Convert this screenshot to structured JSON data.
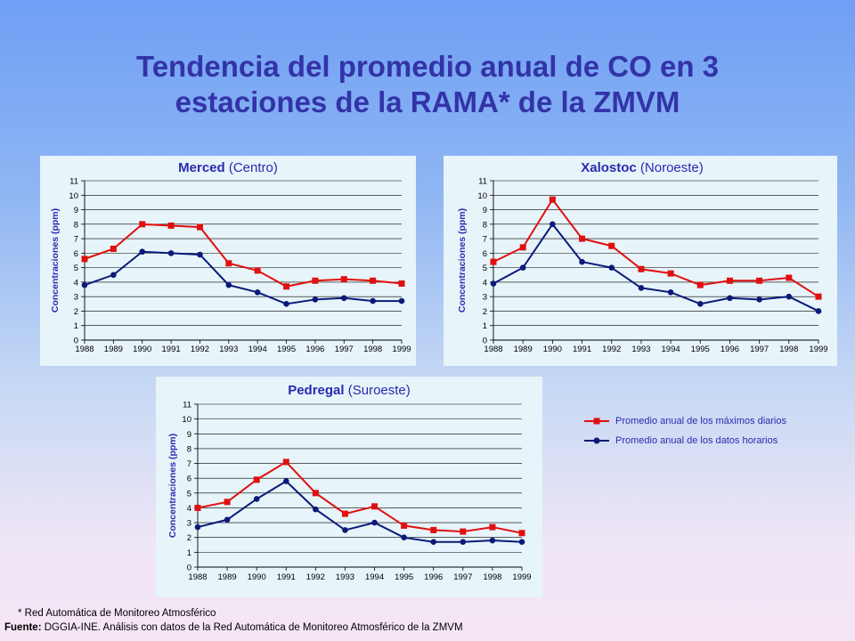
{
  "title_line1": "Tendencia del promedio anual de CO en 3",
  "title_line2": "estaciones de la RAMA* de la ZMVM",
  "colors": {
    "max_series": "#e01010",
    "avg_series": "#0a1a7a",
    "panel_bg": "#e7f4f9",
    "title": "#3333a8"
  },
  "legend": {
    "max_label": "Promedio anual de los máximos diarios",
    "avg_label": "Promedio anual de los datos horarios"
  },
  "footnote": "* Red Automática de Monitoreo Atmosférico",
  "source_label": "Fuente:",
  "source_text": "DGGIA-INE.  Análisis con datos de la Red Automática de Monitoreo Atmosférico de la ZMVM",
  "chart_data": [
    {
      "type": "line",
      "title_bold": "Merced",
      "title_rest": " (Centro)",
      "ylabel": "Concentraciones  (ppm)",
      "ylim": [
        0,
        11
      ],
      "yticks": [
        "0",
        "1",
        "2",
        "3",
        "4",
        "5",
        "6",
        "7",
        "8",
        "9",
        "10",
        "11"
      ],
      "grid": true,
      "categories": [
        "1988",
        "1989",
        "1990",
        "1991",
        "1992",
        "1993",
        "1994",
        "1995",
        "1996",
        "1997",
        "1998",
        "1999"
      ],
      "series": [
        {
          "name": "Promedio anual de los máximos diarios",
          "marker": "square",
          "values": [
            5.6,
            6.3,
            8.0,
            7.9,
            7.8,
            5.3,
            4.8,
            3.7,
            4.1,
            4.2,
            4.1,
            3.9
          ]
        },
        {
          "name": "Promedio anual de los datos horarios",
          "marker": "circle",
          "values": [
            3.8,
            4.5,
            6.1,
            6.0,
            5.9,
            3.8,
            3.3,
            2.5,
            2.8,
            2.9,
            2.7,
            2.7
          ]
        }
      ]
    },
    {
      "type": "line",
      "title_bold": "Xalostoc",
      "title_rest": " (Noroeste)",
      "ylabel": "Concentraciones  (ppm)",
      "ylim": [
        0,
        11
      ],
      "yticks": [
        "0",
        "1",
        "2",
        "3",
        "4",
        "5",
        "6",
        "7",
        "8",
        "9",
        "10",
        "11"
      ],
      "grid": true,
      "categories": [
        "1988",
        "1989",
        "1990",
        "1991",
        "1992",
        "1993",
        "1994",
        "1995",
        "1996",
        "1997",
        "1998",
        "1999"
      ],
      "series": [
        {
          "name": "Promedio anual de los máximos diarios",
          "marker": "square",
          "values": [
            5.4,
            6.4,
            9.7,
            7.0,
            6.5,
            4.9,
            4.6,
            3.8,
            4.1,
            4.1,
            4.3,
            3.0
          ]
        },
        {
          "name": "Promedio anual de los datos horarios",
          "marker": "circle",
          "values": [
            3.9,
            5.0,
            8.0,
            5.4,
            5.0,
            3.6,
            3.3,
            2.5,
            2.9,
            2.8,
            3.0,
            2.0
          ]
        }
      ]
    },
    {
      "type": "line",
      "title_bold": "Pedregal",
      "title_rest": " (Suroeste)",
      "ylabel": "Concentraciones  (ppm)",
      "ylim": [
        0,
        11
      ],
      "yticks": [
        "0",
        "1",
        "2",
        "3",
        "4",
        "5",
        "6",
        "7",
        "8",
        "9",
        "10",
        "11"
      ],
      "grid": true,
      "categories": [
        "1988",
        "1989",
        "1990",
        "1991",
        "1992",
        "1993",
        "1994",
        "1995",
        "1996",
        "1997",
        "1998",
        "1999"
      ],
      "series": [
        {
          "name": "Promedio anual de los máximos diarios",
          "marker": "square",
          "values": [
            4.0,
            4.4,
            5.9,
            7.1,
            5.0,
            3.6,
            4.1,
            2.8,
            2.5,
            2.4,
            2.7,
            2.3
          ]
        },
        {
          "name": "Promedio anual de los datos horarios",
          "marker": "circle",
          "values": [
            2.7,
            3.2,
            4.6,
            5.8,
            3.9,
            2.5,
            3.0,
            2.0,
            1.7,
            1.7,
            1.8,
            1.7
          ]
        }
      ]
    }
  ]
}
